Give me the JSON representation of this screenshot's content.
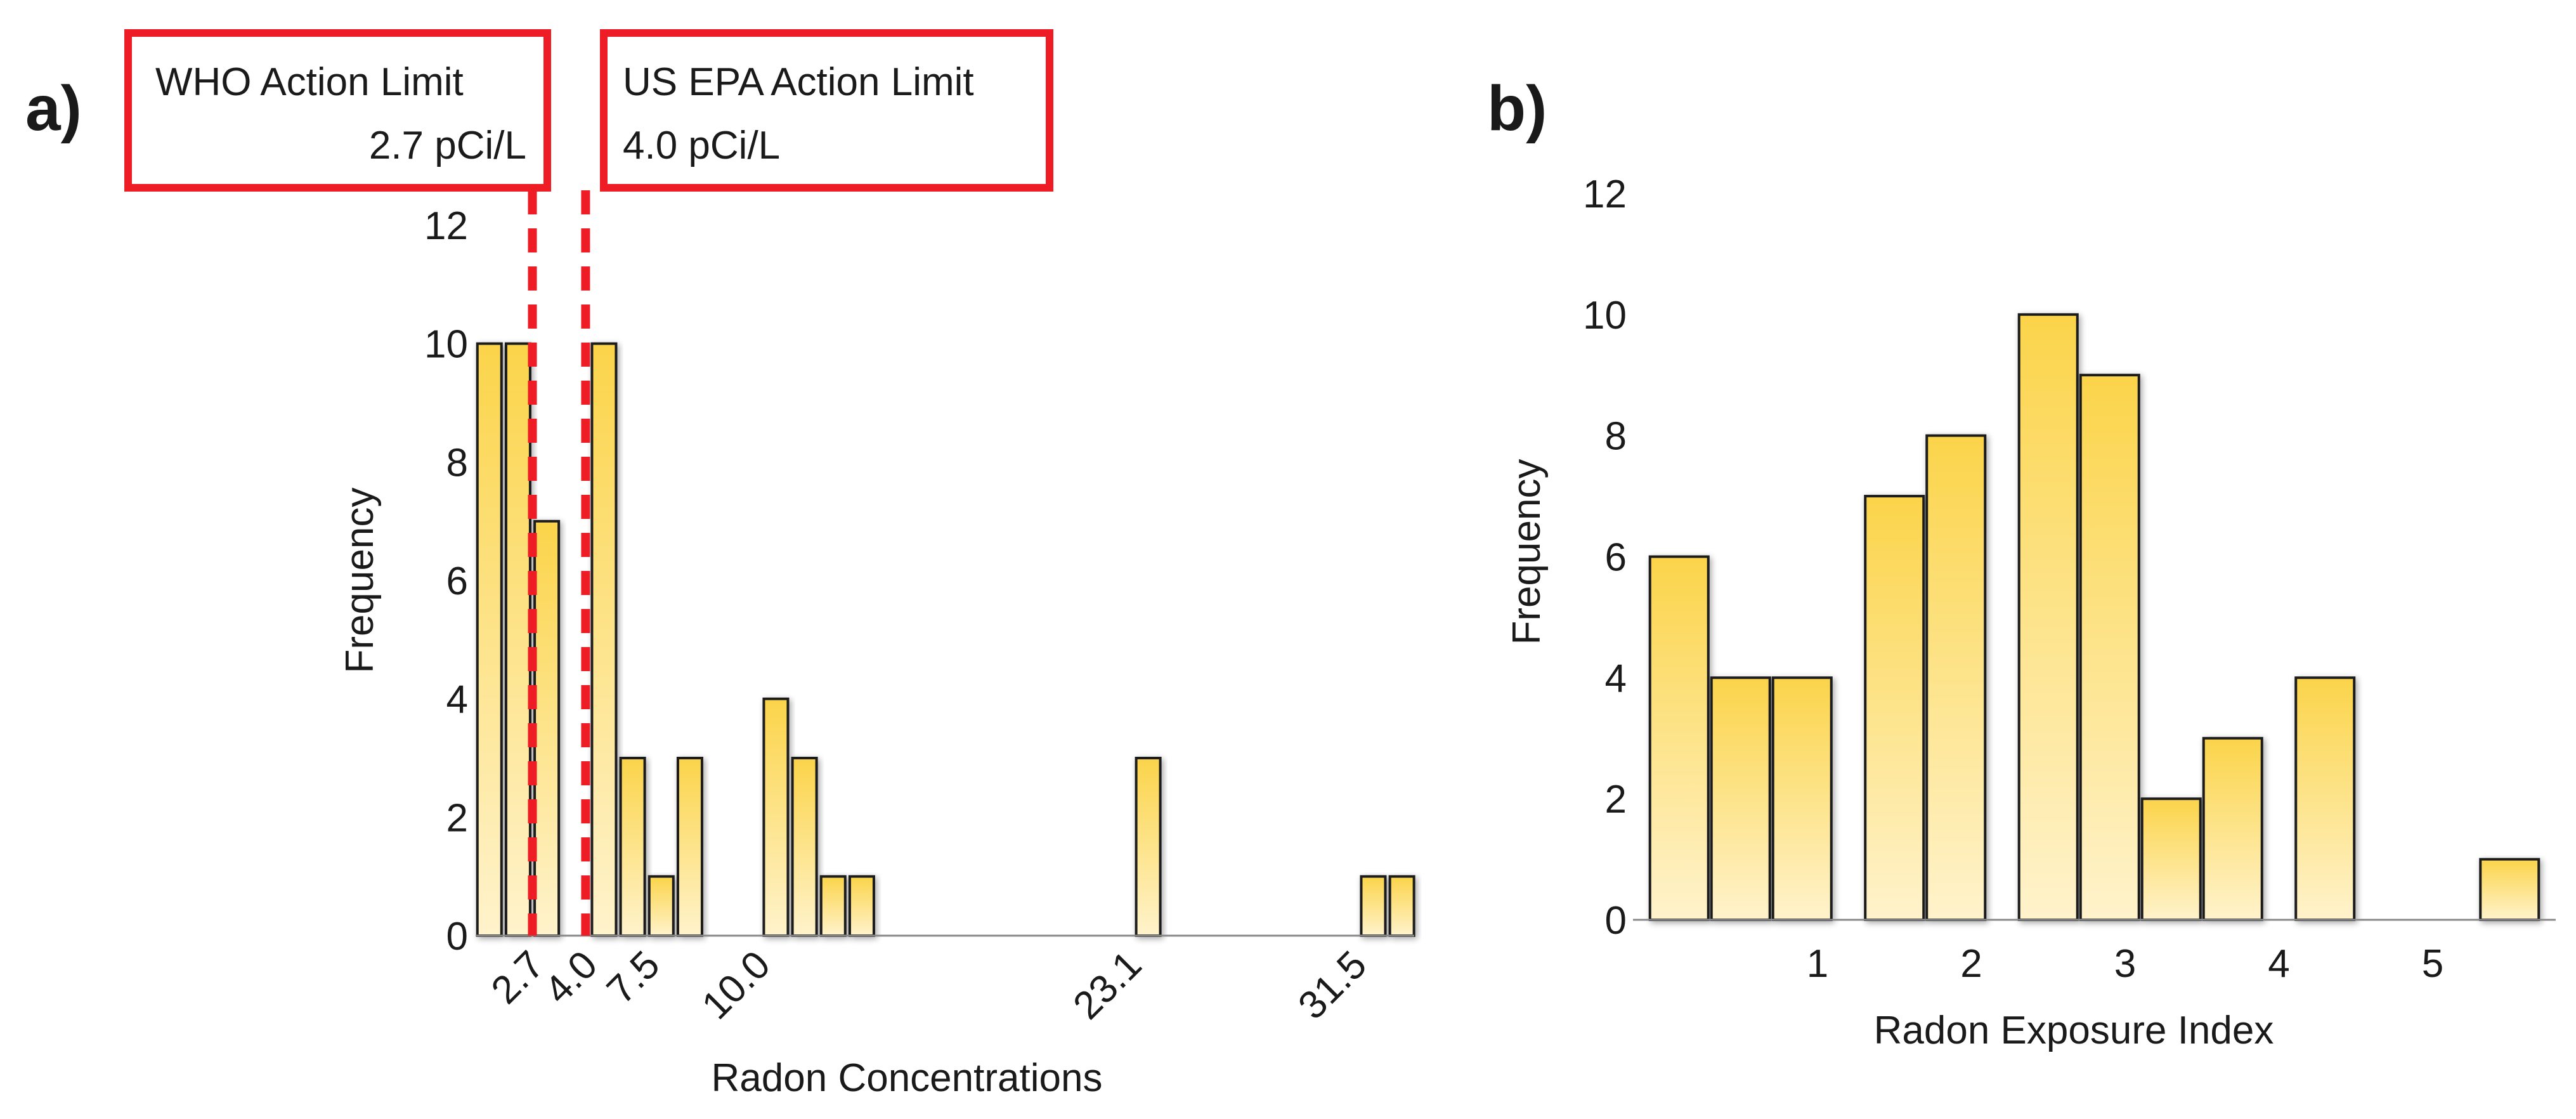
{
  "chart_data": [
    {
      "type": "bar",
      "panel_label": "a)",
      "xlabel": "Radon Concentrations",
      "ylabel": "Frequency",
      "ylim": [
        0,
        12
      ],
      "yticks": [
        0,
        2,
        4,
        6,
        8,
        10,
        12
      ],
      "grid": false,
      "bar_x": [
        1.52,
        2.08,
        2.64,
        3.76,
        4.32,
        4.88,
        5.44,
        7.12,
        7.68,
        8.24,
        8.8,
        14.4,
        18.8,
        19.36
      ],
      "values": [
        10,
        10,
        7,
        10,
        3,
        1,
        3,
        4,
        3,
        1,
        1,
        3,
        1,
        1
      ],
      "xrange": [
        1.25,
        19.6
      ],
      "xticks": [
        {
          "x": 2.36,
          "label": "2.7"
        },
        {
          "x": 3.4,
          "label": "4.0"
        },
        {
          "x": 4.62,
          "label": "7.5"
        },
        {
          "x": 6.78,
          "label": "10.0"
        },
        {
          "x": 14.04,
          "label": "23.1"
        },
        {
          "x": 18.44,
          "label": "31.5"
        }
      ],
      "reference_lines": [
        {
          "x": 2.36,
          "label_line1": "WHO Action Limit",
          "label_line2": "2.7 pCi/L",
          "color": "#ee1c24"
        },
        {
          "x": 3.4,
          "label_line1": "US EPA Action Limit",
          "label_line2": "4.0 pCi/L",
          "color": "#ee1c24"
        }
      ],
      "bar_color_top": "#fbd44a",
      "bar_color_bottom": "#fff3cc"
    },
    {
      "type": "bar",
      "panel_label": "b)",
      "xlabel": "Radon Exposure Index",
      "ylabel": "Frequency",
      "ylim": [
        0,
        12
      ],
      "yticks": [
        0,
        2,
        4,
        6,
        8,
        10,
        12
      ],
      "grid": false,
      "bar_x": [
        0.1,
        0.5,
        0.9,
        1.5,
        1.9,
        2.5,
        2.9,
        3.3,
        3.7,
        4.3,
        5.5
      ],
      "values": [
        6,
        4,
        4,
        7,
        8,
        10,
        9,
        2,
        3,
        4,
        1
      ],
      "xrange": [
        -0.2,
        5.8
      ],
      "xticks": [
        {
          "x": 1,
          "label": "1"
        },
        {
          "x": 2,
          "label": "2"
        },
        {
          "x": 3,
          "label": "3"
        },
        {
          "x": 4,
          "label": "4"
        },
        {
          "x": 5,
          "label": "5"
        }
      ],
      "bar_color_top": "#fbd44a",
      "bar_color_bottom": "#fff3cc"
    }
  ]
}
